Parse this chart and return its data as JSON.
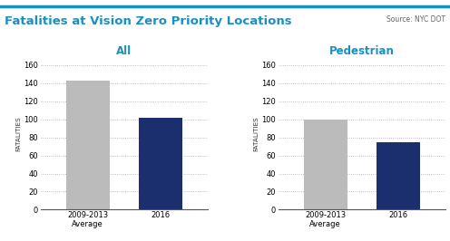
{
  "title": "Fatalities at Vision Zero Priority Locations",
  "source": "Source: NYC DOT",
  "title_color": "#1A8FC1",
  "source_color": "#666666",
  "subplot_titles": [
    "All",
    "Pedestrian"
  ],
  "subplot_title_color": "#1A8FC1",
  "categories": [
    "2009-2013\nAverage",
    "2016"
  ],
  "all_values": [
    143,
    102
  ],
  "ped_values": [
    100,
    75
  ],
  "bar_colors": [
    "#BBBBBB",
    "#1B2F6E"
  ],
  "ylabel": "FATALITIES",
  "ylim": [
    0,
    168
  ],
  "yticks": [
    0,
    20,
    40,
    60,
    80,
    100,
    120,
    140,
    160
  ],
  "grid_color": "#AAAAAA",
  "bg_color": "#FFFFFF",
  "bar_width": 0.6,
  "top_line_color": "#1A8FC1"
}
